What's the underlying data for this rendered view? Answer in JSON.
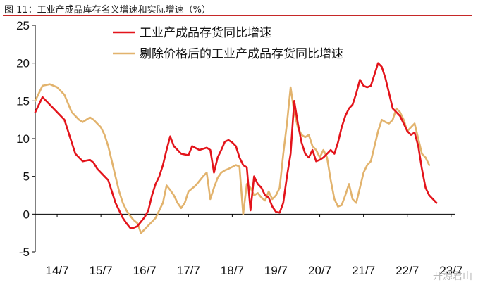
{
  "chart_data": {
    "type": "line",
    "title": "图 11：工业产成品库存名义增速和实际增速（%）",
    "xlabel": "",
    "ylabel": "",
    "ylim": [
      -5,
      25
    ],
    "yticks": [
      "25",
      "20",
      "15",
      "10",
      "5",
      "0",
      "-5"
    ],
    "ytick_values": [
      25,
      20,
      15,
      10,
      5,
      0,
      -5
    ],
    "xtick_labels": [
      "14/7",
      "15/7",
      "16/7",
      "17/7",
      "18/7",
      "19/7",
      "20/7",
      "21/7",
      "22/7",
      "23/7"
    ],
    "x_start": "2014-01",
    "x_end": "2023-08",
    "legend_position": "top-center",
    "series": [
      {
        "name": "工业产成品存货同比增速",
        "color": "#e3141b",
        "points": [
          [
            0,
            13.5
          ],
          [
            2,
            15.5
          ],
          [
            5,
            14.0
          ],
          [
            8,
            12.5
          ],
          [
            10,
            9.5
          ],
          [
            11,
            8.0
          ],
          [
            13,
            7.0
          ],
          [
            15,
            7.2
          ],
          [
            16,
            6.8
          ],
          [
            17,
            6.0
          ],
          [
            19,
            5.0
          ],
          [
            20,
            4.5
          ],
          [
            21,
            3.0
          ],
          [
            22,
            1.5
          ],
          [
            23,
            0.5
          ],
          [
            24,
            -0.5
          ],
          [
            25,
            -1.2
          ],
          [
            26,
            -1.8
          ],
          [
            27,
            -1.8
          ],
          [
            28,
            -1.6
          ],
          [
            29,
            -1.0
          ],
          [
            30,
            -0.4
          ],
          [
            31,
            0.5
          ],
          [
            32,
            2.5
          ],
          [
            33,
            4.0
          ],
          [
            34,
            5.0
          ],
          [
            35,
            6.5
          ],
          [
            36,
            8.5
          ],
          [
            37,
            10.3
          ],
          [
            38,
            9.0
          ],
          [
            40,
            8.0
          ],
          [
            42,
            7.8
          ],
          [
            43,
            9.0
          ],
          [
            45,
            8.5
          ],
          [
            47,
            8.8
          ],
          [
            48,
            8.5
          ],
          [
            49,
            5.5
          ],
          [
            50,
            7.5
          ],
          [
            51,
            8.5
          ],
          [
            52,
            9.6
          ],
          [
            53,
            9.8
          ],
          [
            54,
            9.5
          ],
          [
            55,
            9.0
          ],
          [
            56,
            7.5
          ],
          [
            57,
            6.5
          ],
          [
            58,
            6.2
          ],
          [
            59,
            0.5
          ],
          [
            60,
            5.0
          ],
          [
            61,
            4.0
          ],
          [
            62,
            3.5
          ],
          [
            63,
            2.5
          ],
          [
            64,
            2.2
          ],
          [
            65,
            1.0
          ],
          [
            66,
            0.3
          ],
          [
            67,
            0.2
          ],
          [
            68,
            1.5
          ],
          [
            69,
            5.0
          ],
          [
            70,
            8.0
          ],
          [
            71,
            15.0
          ],
          [
            72,
            12.0
          ],
          [
            73,
            9.5
          ],
          [
            74,
            8.0
          ],
          [
            75,
            7.5
          ],
          [
            76,
            8.5
          ],
          [
            77,
            7.0
          ],
          [
            78,
            7.2
          ],
          [
            79,
            7.5
          ],
          [
            80,
            8.0
          ],
          [
            81,
            8.5
          ],
          [
            82,
            8.0
          ],
          [
            83,
            9.5
          ],
          [
            84,
            11.5
          ],
          [
            85,
            13.0
          ],
          [
            86,
            14.0
          ],
          [
            87,
            14.5
          ],
          [
            88,
            16.0
          ],
          [
            89,
            17.8
          ],
          [
            90,
            17.0
          ],
          [
            91,
            16.8
          ],
          [
            92,
            17.0
          ],
          [
            93,
            18.5
          ],
          [
            94,
            20.0
          ],
          [
            95,
            19.5
          ],
          [
            96,
            18.0
          ],
          [
            97,
            16.0
          ],
          [
            98,
            14.0
          ],
          [
            99,
            13.5
          ],
          [
            100,
            13.0
          ],
          [
            101,
            12.0
          ],
          [
            102,
            11.0
          ],
          [
            103,
            10.5
          ],
          [
            104,
            10.8
          ],
          [
            105,
            9.0
          ],
          [
            106,
            6.0
          ],
          [
            107,
            3.5
          ],
          [
            108,
            2.5
          ],
          [
            109,
            2.0
          ],
          [
            110,
            1.5
          ]
        ]
      },
      {
        "name": "剔除价格后的工业产成品存货同比增速",
        "color": "#e2b36d",
        "points": [
          [
            0,
            15.0
          ],
          [
            2,
            17.0
          ],
          [
            4,
            17.2
          ],
          [
            6,
            16.8
          ],
          [
            8,
            15.8
          ],
          [
            10,
            13.5
          ],
          [
            12,
            12.5
          ],
          [
            13,
            12.2
          ],
          [
            15,
            12.8
          ],
          [
            16,
            12.5
          ],
          [
            18,
            11.5
          ],
          [
            19,
            10.5
          ],
          [
            20,
            9.0
          ],
          [
            21,
            7.0
          ],
          [
            22,
            5.0
          ],
          [
            23,
            3.0
          ],
          [
            24,
            1.5
          ],
          [
            25,
            0.5
          ],
          [
            26,
            -0.2
          ],
          [
            27,
            -0.8
          ],
          [
            28,
            -1.2
          ],
          [
            29,
            -2.5
          ],
          [
            30,
            -2.0
          ],
          [
            31,
            -1.5
          ],
          [
            32,
            -1.0
          ],
          [
            33,
            -0.5
          ],
          [
            34,
            0.5
          ],
          [
            35,
            1.5
          ],
          [
            36,
            3.8
          ],
          [
            37,
            3.2
          ],
          [
            38,
            2.5
          ],
          [
            39,
            1.5
          ],
          [
            40,
            0.8
          ],
          [
            41,
            1.5
          ],
          [
            42,
            3.0
          ],
          [
            44,
            3.8
          ],
          [
            46,
            5.0
          ],
          [
            47,
            5.5
          ],
          [
            48,
            2.0
          ],
          [
            49,
            3.5
          ],
          [
            50,
            4.8
          ],
          [
            51,
            5.5
          ],
          [
            52,
            5.8
          ],
          [
            53,
            6.0
          ],
          [
            55,
            6.5
          ],
          [
            56,
            6.3
          ],
          [
            57,
            0.0
          ],
          [
            58,
            4.0
          ],
          [
            59,
            3.5
          ],
          [
            60,
            2.5
          ],
          [
            61,
            2.8
          ],
          [
            62,
            2.2
          ],
          [
            63,
            1.8
          ],
          [
            64,
            3.0
          ],
          [
            65,
            2.0
          ],
          [
            66,
            2.5
          ],
          [
            67,
            3.5
          ],
          [
            68,
            8.0
          ],
          [
            69,
            12.0
          ],
          [
            70,
            16.8
          ],
          [
            71,
            13.5
          ],
          [
            72,
            11.5
          ],
          [
            73,
            10.5
          ],
          [
            74,
            10.2
          ],
          [
            75,
            10.5
          ],
          [
            76,
            9.0
          ],
          [
            77,
            8.5
          ],
          [
            78,
            7.5
          ],
          [
            79,
            8.5
          ],
          [
            80,
            7.5
          ],
          [
            81,
            4.5
          ],
          [
            82,
            2.0
          ],
          [
            83,
            1.0
          ],
          [
            84,
            1.2
          ],
          [
            85,
            2.5
          ],
          [
            86,
            4.0
          ],
          [
            87,
            2.0
          ],
          [
            88,
            1.5
          ],
          [
            89,
            3.5
          ],
          [
            90,
            5.5
          ],
          [
            91,
            6.5
          ],
          [
            92,
            7.0
          ],
          [
            93,
            9.0
          ],
          [
            94,
            11.0
          ],
          [
            95,
            12.5
          ],
          [
            96,
            12.2
          ],
          [
            97,
            12.0
          ],
          [
            98,
            12.5
          ],
          [
            99,
            14.0
          ],
          [
            100,
            13.5
          ],
          [
            101,
            12.5
          ],
          [
            102,
            11.0
          ],
          [
            103,
            11.5
          ],
          [
            104,
            12.0
          ],
          [
            105,
            10.0
          ],
          [
            106,
            8.0
          ],
          [
            107,
            7.5
          ],
          [
            108,
            6.5
          ]
        ]
      }
    ]
  },
  "watermark": "开源君山"
}
